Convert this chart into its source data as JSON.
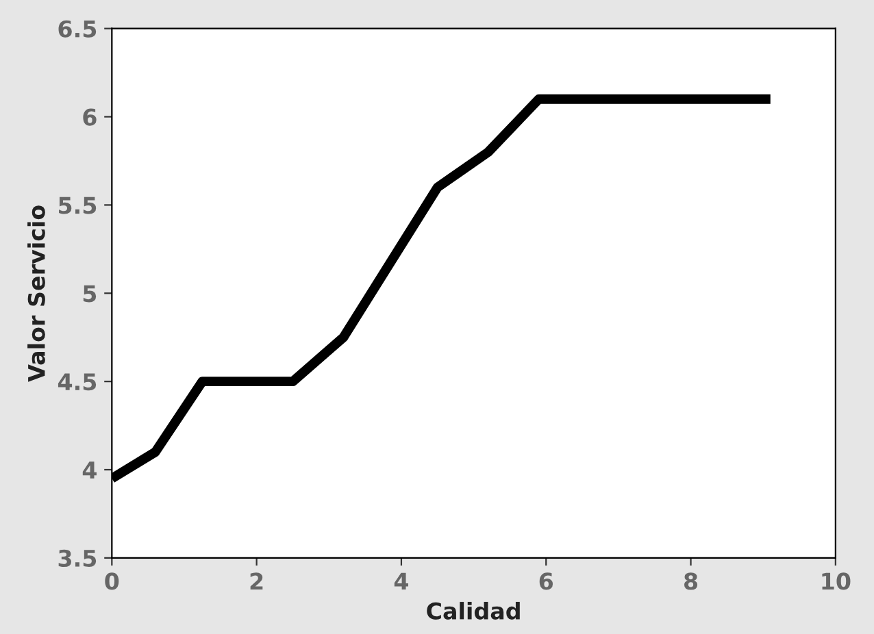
{
  "chart_data": {
    "type": "line",
    "xlabel": "Calidad",
    "ylabel": "Valor Servicio",
    "x": [
      0,
      0.6,
      1.25,
      2.5,
      3.2,
      4.5,
      5.2,
      5.9,
      9.1
    ],
    "series": [
      {
        "color": "#000000",
        "values": [
          3.95,
          4.1,
          4.5,
          4.5,
          4.75,
          5.6,
          5.8,
          6.1,
          6.1
        ]
      }
    ],
    "xlim": [
      0,
      10
    ],
    "xticks": [
      0,
      2,
      4,
      6,
      8,
      10
    ],
    "ylim": [
      3.5,
      6.5
    ],
    "yticks": [
      3.5,
      4,
      4.5,
      5,
      5.5,
      6,
      6.5
    ],
    "grid": false,
    "legend": false,
    "marker": "none",
    "line_style": "solid"
  }
}
